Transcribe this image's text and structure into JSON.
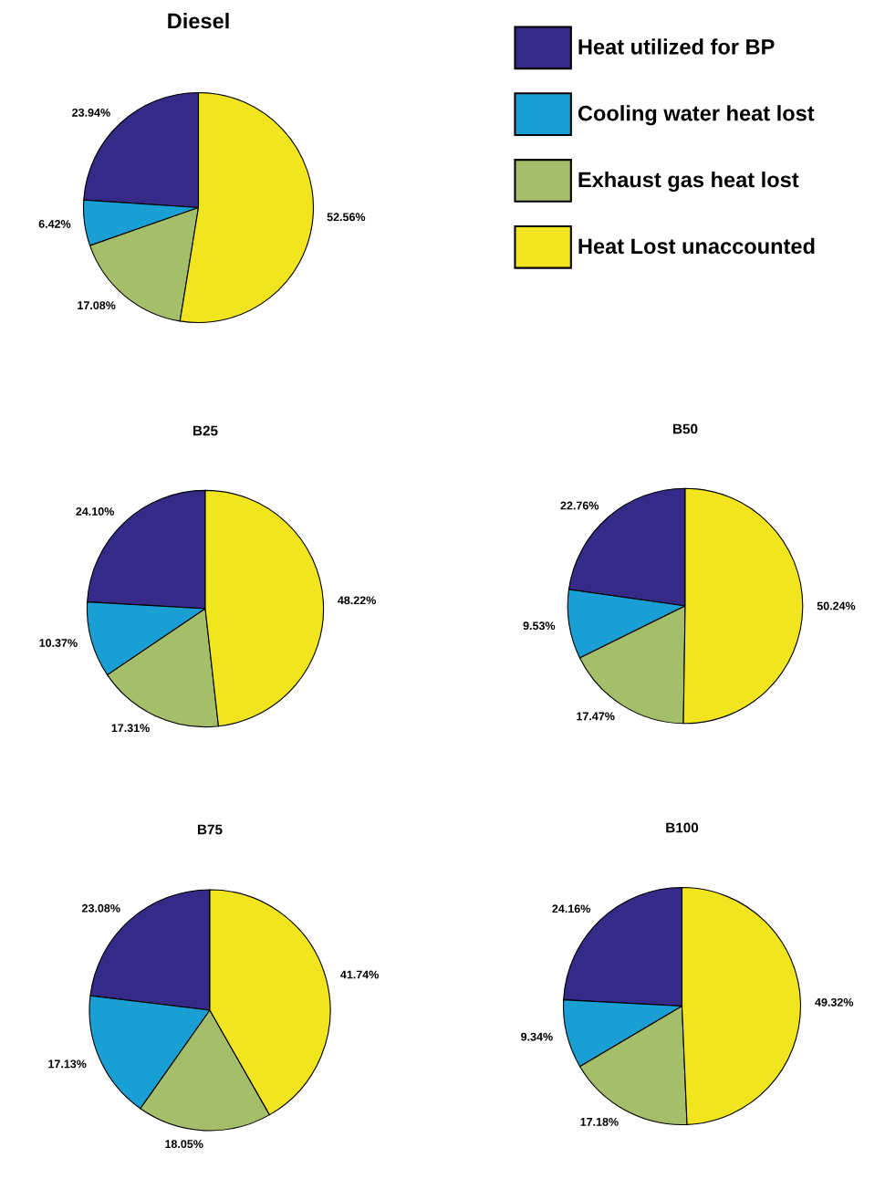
{
  "chart_data": [
    {
      "type": "pie",
      "title": "Diesel",
      "categories": [
        "Heat utilized for BP",
        "Cooling water heat lost",
        "Exhaust gas heat lost",
        "Heat Lost unaccounted"
      ],
      "values": [
        23.94,
        6.42,
        17.08,
        52.56
      ],
      "value_labels": [
        "23.94%",
        "6.42%",
        "17.08%",
        "52.56%"
      ],
      "colors": [
        "#352a87",
        "#1a9fd4",
        "#a5be6a",
        "#f0e51f"
      ],
      "legend": "right"
    },
    {
      "type": "pie",
      "title": "B25",
      "categories": [
        null,
        null,
        null,
        null
      ],
      "values": [
        24.1,
        10.37,
        17.31,
        48.22
      ],
      "value_labels": [
        "24.10%",
        "10.37%",
        "17.31%",
        "48.22%"
      ],
      "colors": [
        "#352a87",
        "#1a9fd4",
        "#a5be6a",
        "#f0e51f"
      ]
    },
    {
      "type": "pie",
      "title": "B50",
      "categories": [
        null,
        null,
        null,
        null
      ],
      "values": [
        22.76,
        9.53,
        17.47,
        50.24
      ],
      "value_labels": [
        "22.76%",
        "9.53%",
        "17.47%",
        "50.24%"
      ],
      "colors": [
        "#352a87",
        "#1a9fd4",
        "#a5be6a",
        "#f0e51f"
      ]
    },
    {
      "type": "pie",
      "title": "B75",
      "categories": [
        null,
        null,
        null,
        null
      ],
      "values": [
        23.08,
        17.13,
        18.05,
        41.74
      ],
      "value_labels": [
        "23.08%",
        "17.13%",
        "18.05%",
        "41.74%"
      ],
      "colors": [
        "#352a87",
        "#1a9fd4",
        "#a5be6a",
        "#f0e51f"
      ]
    },
    {
      "type": "pie",
      "title": "B100",
      "categories": [
        null,
        null,
        null,
        null
      ],
      "values": [
        24.16,
        9.34,
        17.18,
        49.32
      ],
      "value_labels": [
        "24.16%",
        "9.34%",
        "17.18%",
        "49.32%"
      ],
      "colors": [
        "#352a87",
        "#1a9fd4",
        "#a5be6a",
        "#f0e51f"
      ]
    }
  ]
}
